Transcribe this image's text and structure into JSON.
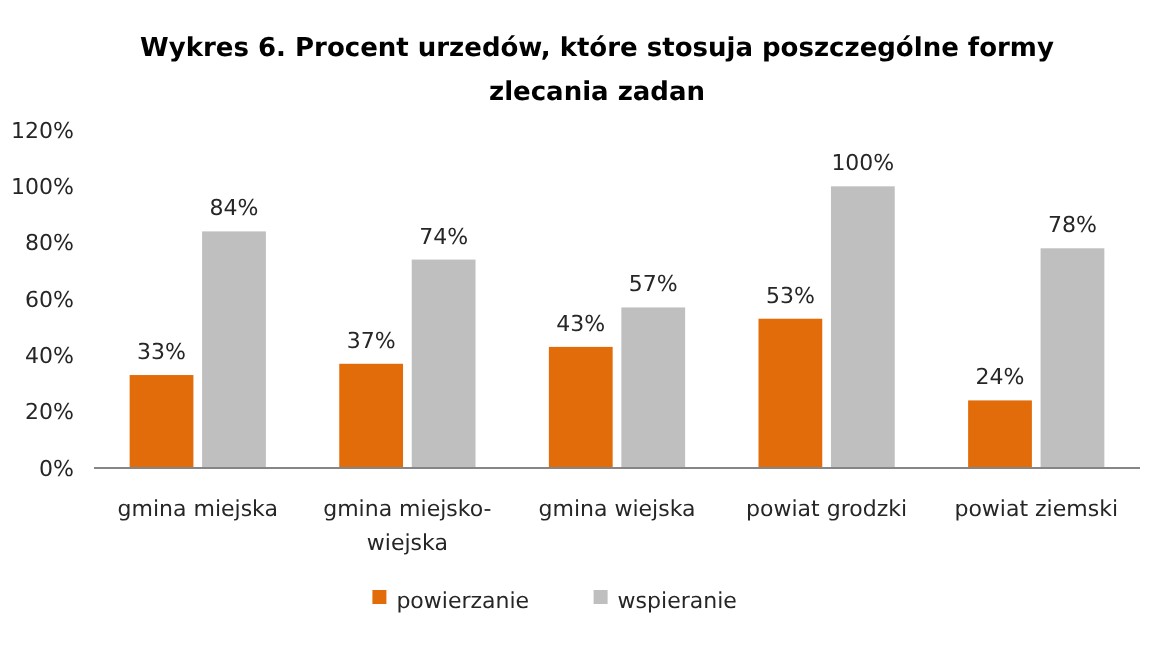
{
  "chart_data": {
    "type": "bar",
    "title": "Wykres 6. Procent urzedów, które stosuja poszczególne formy zlecania zadan",
    "categories": [
      "gmina miejska",
      "gmina miejsko-wiejska",
      "gmina wiejska",
      "powiat grodzki",
      "powiat ziemski"
    ],
    "series": [
      {
        "name": "powierzanie",
        "color": "#e36c0a",
        "values": [
          33,
          37,
          43,
          53,
          24
        ],
        "value_labels": [
          "33%",
          "37%",
          "43%",
          "53%",
          "24%"
        ]
      },
      {
        "name": "wspieranie",
        "color": "#bfbfbf",
        "values": [
          84,
          74,
          57,
          100,
          78
        ],
        "value_labels": [
          "84%",
          "74%",
          "57%",
          "100%",
          "78%"
        ]
      }
    ],
    "ylim": [
      0,
      120
    ],
    "yticks": [
      {
        "value": 0,
        "label": "0%"
      },
      {
        "value": 20,
        "label": "20%"
      },
      {
        "value": 40,
        "label": "40%"
      },
      {
        "value": 60,
        "label": "60%"
      },
      {
        "value": 80,
        "label": "80%"
      },
      {
        "value": 100,
        "label": "100%"
      },
      {
        "value": 120,
        "label": "120%"
      }
    ],
    "grid": false,
    "legend": "bottom"
  }
}
